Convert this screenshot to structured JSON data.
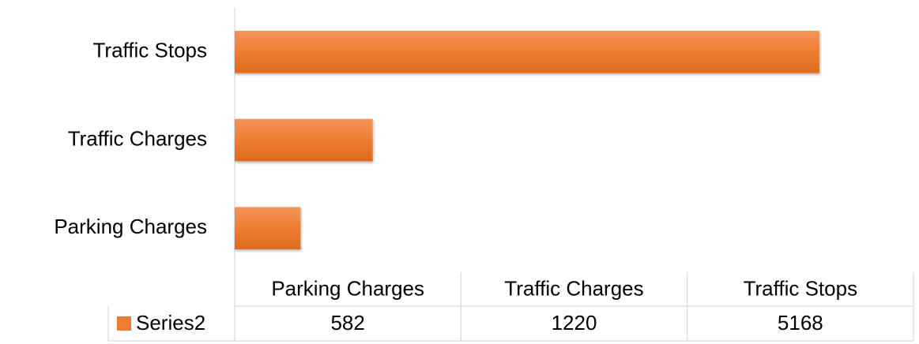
{
  "chart_data": {
    "type": "bar",
    "orientation": "horizontal",
    "categories": [
      "Parking Charges",
      "Traffic Charges",
      "Traffic Stops"
    ],
    "series": [
      {
        "name": "Series2",
        "color": "#ed7d31",
        "values": [
          582,
          1220,
          5168
        ]
      }
    ],
    "xlim": [
      0,
      6000
    ],
    "data_table": true
  }
}
